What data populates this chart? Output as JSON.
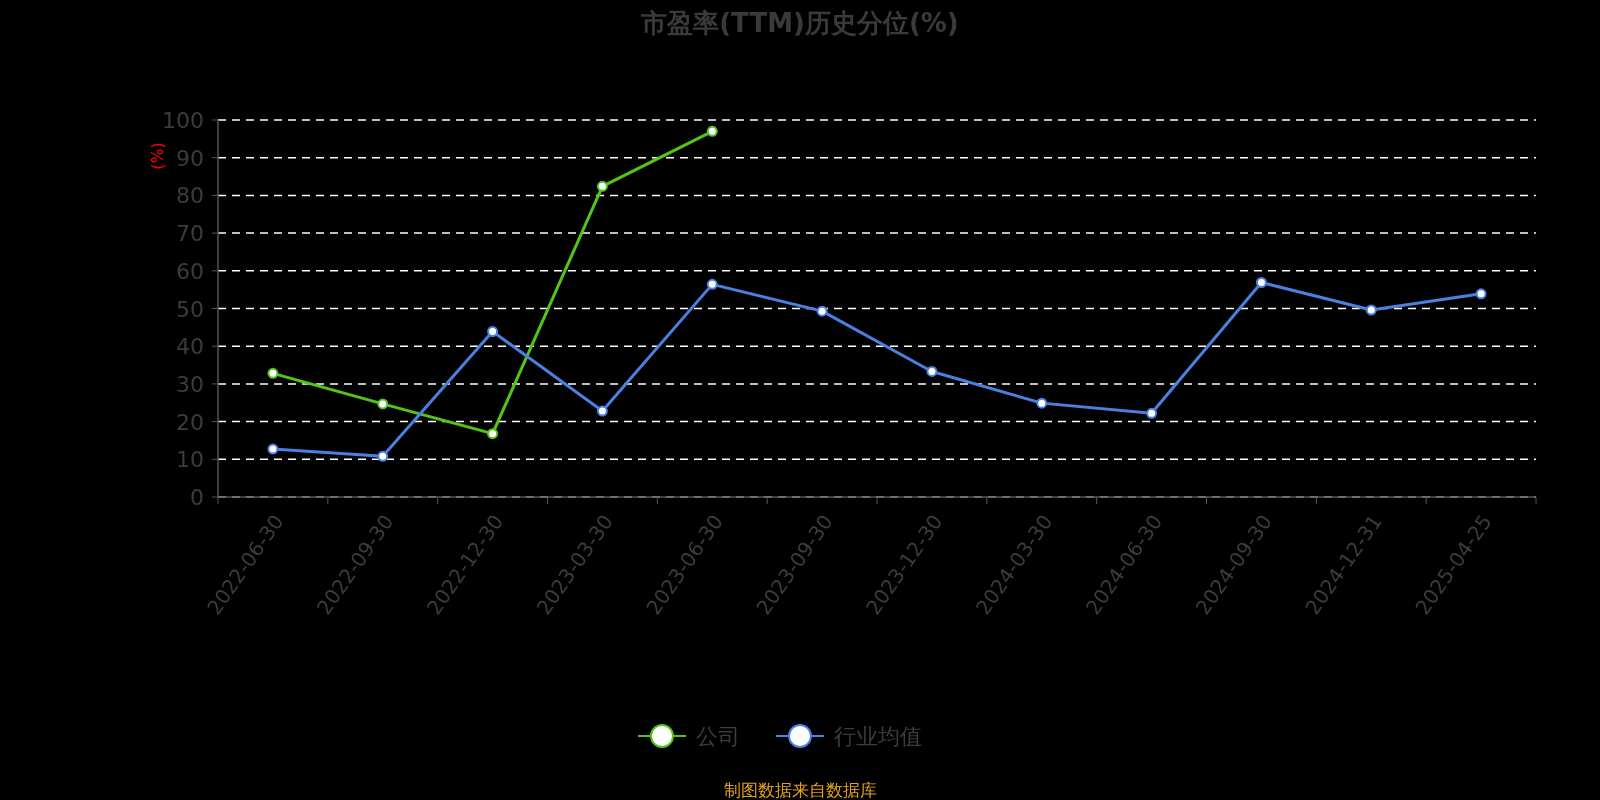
{
  "chart_data": {
    "type": "line",
    "title": "市盈率(TTM)历史分位(%)",
    "ylabel": "(%)",
    "categories": [
      "2022-06-30",
      "2022-09-30",
      "2022-12-30",
      "2023-03-30",
      "2023-06-30",
      "2023-09-30",
      "2023-12-30",
      "2024-03-30",
      "2024-06-30",
      "2024-09-30",
      "2024-12-31",
      "2025-04-25"
    ],
    "series": [
      {
        "name": "公司",
        "color": "#52c41a",
        "values": [
          32.8,
          24.7,
          16.8,
          82.4,
          97.0,
          null,
          null,
          null,
          null,
          null,
          null,
          null
        ]
      },
      {
        "name": "行业均值",
        "color": "#4a80e0",
        "values": [
          12.7,
          10.8,
          43.9,
          22.8,
          56.4,
          49.3,
          33.3,
          24.9,
          22.2,
          56.9,
          49.6,
          53.9
        ]
      }
    ],
    "ylim": [
      0,
      100
    ],
    "yticks": [
      0,
      10,
      20,
      30,
      40,
      50,
      60,
      70,
      80,
      90,
      100
    ],
    "grid": "y",
    "legend": "bottom",
    "marker": "circle",
    "line_style": "solid",
    "annotations": [
      "制图数据来自数据库"
    ]
  }
}
